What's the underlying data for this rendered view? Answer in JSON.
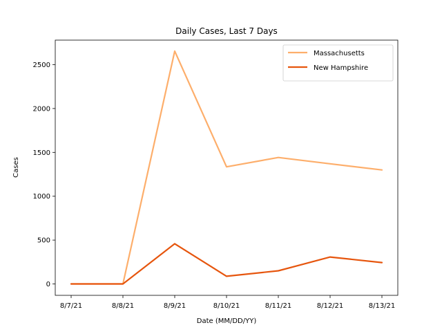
{
  "chart_data": {
    "type": "line",
    "title": "Daily Cases, Last 7 Days",
    "xlabel": "Date (MM/DD/YY)",
    "ylabel": "Cases",
    "categories": [
      "8/7/21",
      "8/8/21",
      "8/9/21",
      "8/10/21",
      "8/11/21",
      "8/12/21",
      "8/13/21"
    ],
    "series": [
      {
        "name": "Massachusetts",
        "color": "#fdae6b",
        "values": [
          0,
          0,
          2655,
          1335,
          1442,
          1370,
          1300
        ]
      },
      {
        "name": "New Hampshire",
        "color": "#e6550d",
        "values": [
          0,
          0,
          458,
          88,
          150,
          307,
          244
        ]
      }
    ],
    "ylim": [
      -130,
      2780
    ],
    "yticks": [
      0,
      500,
      1000,
      1500,
      2000,
      2500
    ],
    "legend": "top-right",
    "grid": false
  }
}
